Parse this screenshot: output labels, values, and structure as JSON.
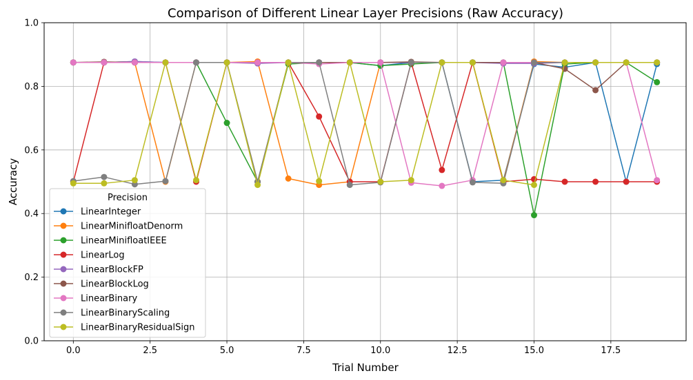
{
  "chart_data": {
    "type": "line",
    "title": "Comparison of Different Linear Layer Precisions (Raw Accuracy)",
    "xlabel": "Trial Number",
    "ylabel": "Accuracy",
    "xlim": [
      -0.95,
      19.95
    ],
    "ylim": [
      0,
      1
    ],
    "xticks": [
      0,
      2.5,
      5,
      7.5,
      10,
      12.5,
      15,
      17.5
    ],
    "xtick_labels": [
      "0.0",
      "2.5",
      "5.0",
      "7.5",
      "10.0",
      "12.5",
      "15.0",
      "17.5"
    ],
    "yticks": [
      0,
      0.2,
      0.4,
      0.6,
      0.8,
      1.0
    ],
    "ytick_labels": [
      "0.0",
      "0.2",
      "0.4",
      "0.6",
      "0.8",
      "1.0"
    ],
    "grid": true,
    "legend_title": "Precision",
    "legend_position": "lower-left",
    "x": [
      0,
      1,
      2,
      3,
      4,
      5,
      6,
      7,
      8,
      9,
      10,
      11,
      12,
      13,
      14,
      15,
      16,
      17,
      18,
      19
    ],
    "series": [
      {
        "name": "LinearInteger",
        "color": "#1f77b4",
        "values": [
          0.875,
          0.875,
          0.878,
          0.875,
          0.875,
          0.875,
          0.875,
          0.875,
          0.875,
          0.875,
          0.865,
          0.875,
          0.875,
          0.5,
          0.505,
          0.87,
          0.86,
          0.875,
          0.5,
          0.87
        ]
      },
      {
        "name": "LinearMinifloatDenorm",
        "color": "#ff7f0e",
        "values": [
          0.875,
          0.875,
          0.875,
          0.5,
          0.875,
          0.875,
          0.878,
          0.51,
          0.49,
          0.5,
          0.875,
          0.875,
          0.875,
          0.875,
          0.5,
          0.878,
          0.875,
          0.875,
          0.875,
          0.875
        ]
      },
      {
        "name": "LinearMinifloatIEEE",
        "color": "#2ca02c",
        "values": [
          0.875,
          0.875,
          0.875,
          0.875,
          0.875,
          0.685,
          0.5,
          0.87,
          0.875,
          0.875,
          0.865,
          0.87,
          0.875,
          0.875,
          0.875,
          0.395,
          0.87,
          0.875,
          0.875,
          0.813
        ]
      },
      {
        "name": "LinearLog",
        "color": "#d62728",
        "values": [
          0.5,
          0.875,
          0.875,
          0.875,
          0.5,
          0.875,
          0.875,
          0.875,
          0.705,
          0.5,
          0.5,
          0.875,
          0.537,
          0.875,
          0.5,
          0.508,
          0.5,
          0.5,
          0.5,
          0.5
        ]
      },
      {
        "name": "LinearBlockFP",
        "color": "#9467bd",
        "values": [
          0.875,
          0.875,
          0.878,
          0.875,
          0.875,
          0.875,
          0.872,
          0.875,
          0.875,
          0.875,
          0.875,
          0.875,
          0.875,
          0.875,
          0.872,
          0.872,
          0.875,
          0.875,
          0.875,
          0.875
        ]
      },
      {
        "name": "LinearBlockLog",
        "color": "#8c564b",
        "values": [
          0.875,
          0.877,
          0.875,
          0.875,
          0.875,
          0.875,
          0.5,
          0.875,
          0.875,
          0.875,
          0.875,
          0.877,
          0.875,
          0.875,
          0.875,
          0.875,
          0.855,
          0.788,
          0.875,
          0.875
        ]
      },
      {
        "name": "LinearBinary",
        "color": "#e377c2",
        "values": [
          0.875,
          0.875,
          0.875,
          0.875,
          0.875,
          0.875,
          0.875,
          0.875,
          0.87,
          0.875,
          0.875,
          0.497,
          0.487,
          0.505,
          0.875,
          0.875,
          0.875,
          0.875,
          0.875,
          0.505
        ]
      },
      {
        "name": "LinearBinaryScaling",
        "color": "#7f7f7f",
        "values": [
          0.502,
          0.515,
          0.492,
          0.502,
          0.875,
          0.875,
          0.5,
          0.875,
          0.875,
          0.49,
          0.498,
          0.875,
          0.875,
          0.498,
          0.495,
          0.875,
          0.875,
          0.875,
          0.875,
          0.875
        ]
      },
      {
        "name": "LinearBinaryResidualSign",
        "color": "#bcbd22",
        "values": [
          0.495,
          0.495,
          0.505,
          0.875,
          0.505,
          0.875,
          0.49,
          0.875,
          0.502,
          0.875,
          0.5,
          0.505,
          0.875,
          0.875,
          0.505,
          0.49,
          0.875,
          0.875,
          0.875,
          0.875
        ]
      }
    ]
  }
}
